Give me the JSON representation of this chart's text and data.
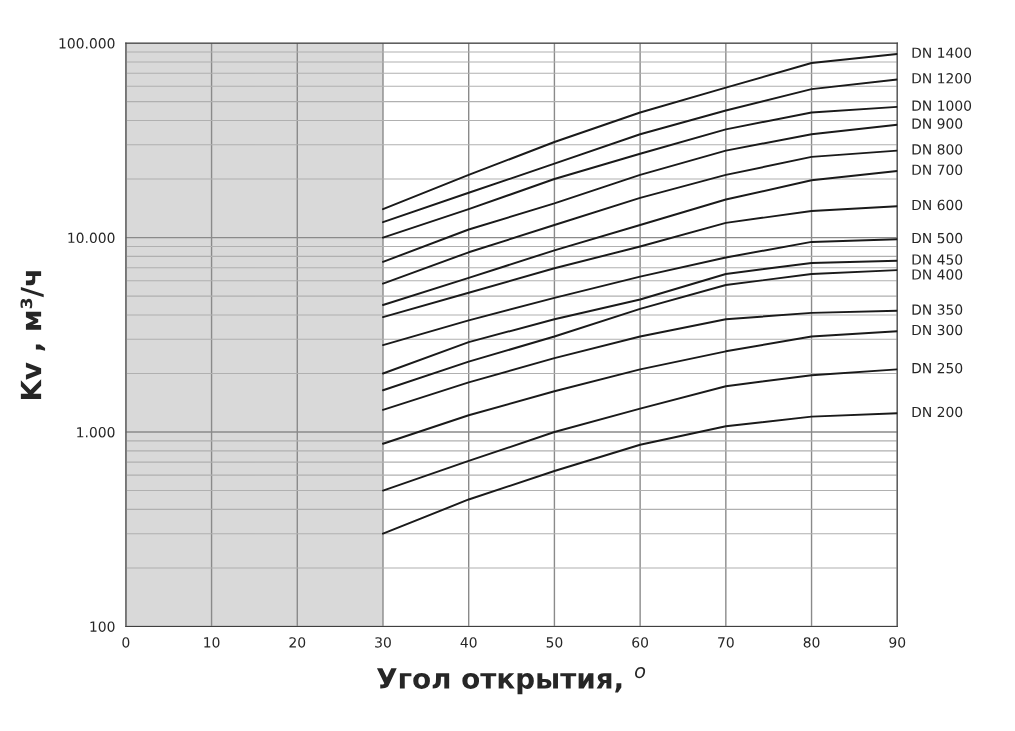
{
  "chart_data": {
    "type": "line",
    "xlabel": "Угол открытия, $^{o}$",
    "ylabel": "Kv , м³/ч",
    "x": [
      30,
      40,
      50,
      60,
      70,
      80,
      90
    ],
    "series": [
      {
        "name": "DN 1400",
        "color": "#1a1a1a",
        "values": [
          14000,
          21000,
          31000,
          44000,
          59000,
          79000,
          88000
        ]
      },
      {
        "name": "DN 1200",
        "color": "#1a1a1a",
        "values": [
          12000,
          17000,
          24000,
          34000,
          45000,
          58000,
          65000
        ]
      },
      {
        "name": "DN 1000",
        "color": "#1a1a1a",
        "values": [
          10000,
          14000,
          20000,
          27000,
          36000,
          44000,
          47000
        ]
      },
      {
        "name": "DN 900",
        "color": "#1a1a1a",
        "values": [
          7500,
          11000,
          15000,
          21000,
          28000,
          34000,
          38000
        ]
      },
      {
        "name": "DN 800",
        "color": "#1a1a1a",
        "values": [
          5800,
          8400,
          11600,
          16000,
          21000,
          26000,
          28000
        ]
      },
      {
        "name": "DN 700",
        "color": "#1a1a1a",
        "values": [
          4500,
          6200,
          8600,
          11600,
          15700,
          19700,
          22000
        ]
      },
      {
        "name": "DN 600",
        "color": "#1a1a1a",
        "values": [
          3900,
          5200,
          6950,
          9000,
          11900,
          13700,
          14500
        ]
      },
      {
        "name": "DN 500",
        "color": "#1a1a1a",
        "values": [
          2800,
          3750,
          4900,
          6300,
          7900,
          9500,
          9800
        ]
      },
      {
        "name": "DN 450",
        "color": "#1a1a1a",
        "values": [
          2000,
          2900,
          3800,
          4800,
          6500,
          7400,
          7600
        ]
      },
      {
        "name": "DN 400",
        "color": "#1a1a1a",
        "values": [
          1640,
          2300,
          3100,
          4300,
          5700,
          6500,
          6800
        ]
      },
      {
        "name": "DN 350",
        "color": "#1a1a1a",
        "values": [
          1300,
          1800,
          2400,
          3100,
          3800,
          4100,
          4200
        ]
      },
      {
        "name": "DN 300",
        "color": "#1a1a1a",
        "values": [
          870,
          1220,
          1620,
          2100,
          2600,
          3100,
          3300
        ]
      },
      {
        "name": "DN 250",
        "color": "#1a1a1a",
        "values": [
          500,
          710,
          1000,
          1320,
          1720,
          1960,
          2100
        ]
      },
      {
        "name": "DN 200",
        "color": "#1a1a1a",
        "values": [
          300,
          450,
          630,
          860,
          1070,
          1200,
          1250
        ]
      }
    ],
    "log": "y",
    "xlim": [
      0,
      90
    ],
    "xticks": [
      0,
      10,
      20,
      30,
      40,
      50,
      60,
      70,
      80,
      90
    ],
    "ylim": [
      100,
      100000
    ],
    "yticks": [
      {
        "value": 100,
        "label": "100"
      },
      {
        "value": 1000,
        "label": "1.000"
      },
      {
        "value": 10000,
        "label": "10.000"
      },
      {
        "value": 100000,
        "label": "100.000"
      }
    ],
    "bands": [
      {
        "axis": "x",
        "from": 0,
        "to": 30,
        "color": "#d9d9d9"
      }
    ],
    "grid": true,
    "legend": false,
    "marker": "none",
    "line_style": "solid"
  }
}
